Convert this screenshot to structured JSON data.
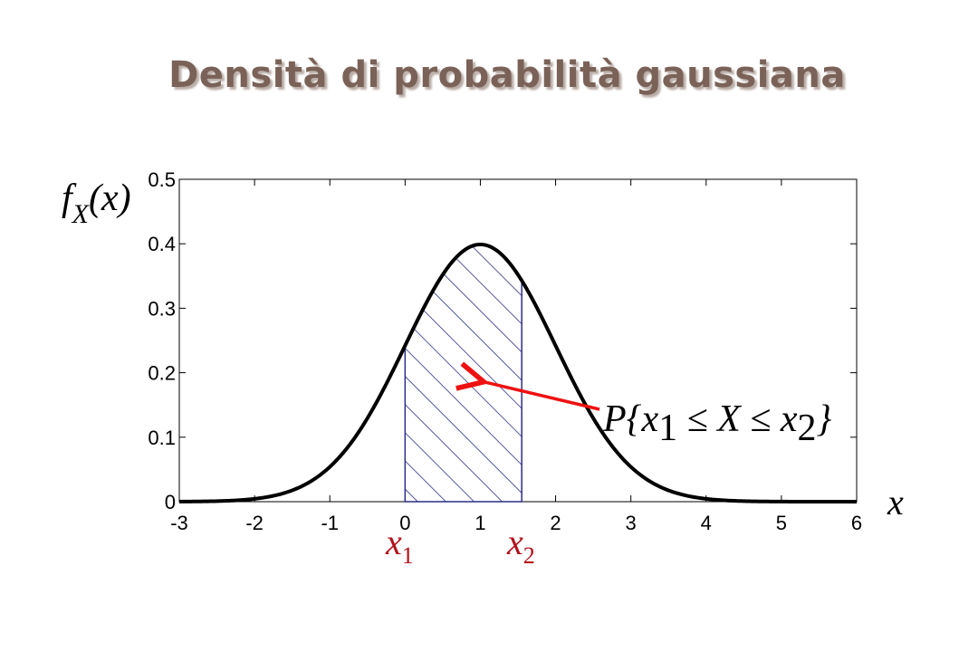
{
  "title": "Densità di probabilità gaussiana",
  "chart_data": {
    "type": "line",
    "series": [
      {
        "distribution": "normal",
        "mean": 1,
        "std": 1
      }
    ],
    "shaded_region": {
      "from": 0,
      "to": 1.55,
      "pattern": "diagonal-hatch",
      "color": "#2b2f86"
    },
    "xlim": [
      -3,
      6
    ],
    "ylim": [
      0,
      0.5
    ],
    "xticks": [
      -3,
      -2,
      -1,
      0,
      1,
      2,
      3,
      4,
      5,
      6
    ],
    "yticks": [
      0,
      0.1,
      0.2,
      0.3,
      0.4,
      0.5
    ],
    "xtick_labels": [
      "-3",
      "-2",
      "-1",
      "0",
      "1",
      "2",
      "3",
      "4",
      "5",
      "6"
    ],
    "ytick_labels": [
      "0",
      "0.1",
      "0.2",
      "0.3",
      "0.4",
      "0.5"
    ],
    "ylabel": {
      "main": "f",
      "sub": "X",
      "arg": "(x)"
    },
    "xlabel": "x",
    "x1_marker": {
      "main": "x",
      "sub": "1"
    },
    "x2_marker": {
      "main": "x",
      "sub": "2"
    },
    "annotation": {
      "text_parts": [
        "P{x",
        "1",
        " ≤ X ≤ x",
        "2",
        "}"
      ],
      "arrow_target": {
        "x": 0.95,
        "y": 0.19
      },
      "arrow_color": "#ee1111"
    },
    "curve_color": "#000000",
    "marker_color": "#b3111b"
  }
}
